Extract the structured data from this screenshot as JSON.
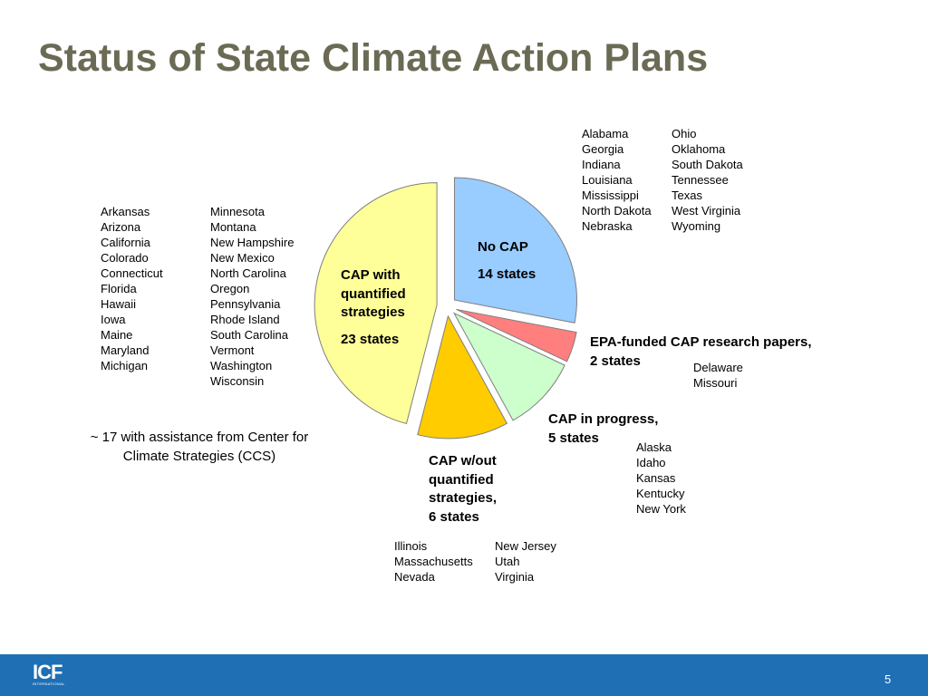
{
  "slide": {
    "title": "Status of State Climate Action Plans",
    "page_number": "5",
    "logo_text": "ICF",
    "logo_subtext": "INTERNATIONAL",
    "colors": {
      "title": "#6b6b55",
      "footer_bar": "#1f6fb5"
    }
  },
  "chart_data": {
    "type": "pie",
    "exploded": true,
    "slices": [
      {
        "label_lines": [
          "No CAP",
          "14 states"
        ],
        "value": 14,
        "color": "#99ccff"
      },
      {
        "label_lines": [
          "EPA-funded CAP research papers,",
          "2 states"
        ],
        "value": 2,
        "color": "#ff7f7f"
      },
      {
        "label_lines": [
          "CAP in progress,",
          "5 states"
        ],
        "value": 5,
        "color": "#ccffcc"
      },
      {
        "label_lines": [
          "CAP w/out",
          "quantified",
          "strategies,",
          "6 states"
        ],
        "value": 6,
        "color": "#ffcc00"
      },
      {
        "label_lines": [
          "CAP with",
          "quantified",
          "strategies",
          "23 states"
        ],
        "value": 23,
        "color": "#ffff99"
      }
    ]
  },
  "state_lists": {
    "no_cap": {
      "col1": [
        "Alabama",
        "Georgia",
        "Indiana",
        "Louisiana",
        "Mississippi",
        "North Dakota",
        "Nebraska"
      ],
      "col2": [
        "Ohio",
        "Oklahoma",
        "South Dakota",
        "Tennessee",
        "Texas",
        "West Virginia",
        "Wyoming"
      ]
    },
    "cap_quantified": {
      "col1": [
        "Arkansas",
        "Arizona",
        "California",
        "Colorado",
        "Connecticut",
        "Florida",
        "Hawaii",
        "Iowa",
        "Maine",
        "Maryland",
        "Michigan"
      ],
      "col2": [
        "Minnesota",
        "Montana",
        "New Hampshire",
        "New Mexico",
        "North Carolina",
        "Oregon",
        "Pennsylvania",
        "Rhode Island",
        "South Carolina",
        "Vermont",
        "Washington",
        "Wisconsin"
      ]
    },
    "epa_funded": [
      "Delaware",
      "Missouri"
    ],
    "in_progress": [
      "Alaska",
      "Idaho",
      "Kansas",
      "Kentucky",
      "New York"
    ],
    "cap_without_quantified": {
      "col1": [
        "Illinois",
        "Massachusetts",
        "Nevada"
      ],
      "col2": [
        "New Jersey",
        "Utah",
        "Virginia"
      ]
    }
  },
  "notes": {
    "ccs_line1": "~ 17 with assistance from Center for",
    "ccs_line2": "Climate Strategies (CCS)"
  }
}
